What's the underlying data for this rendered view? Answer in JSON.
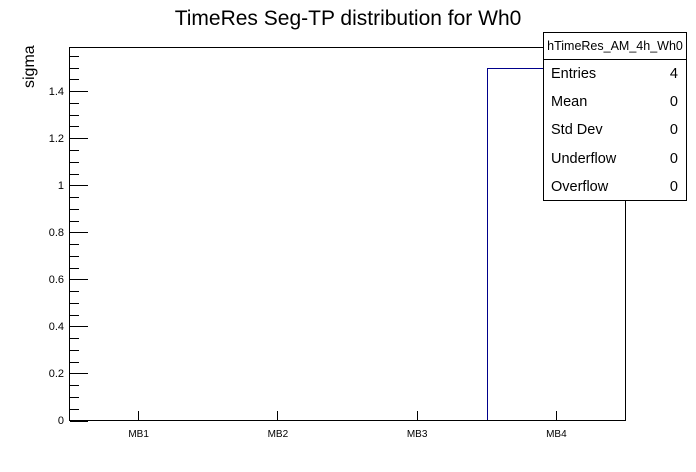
{
  "chart_data": {
    "type": "bar",
    "title": "TimeRes Seg-TP distribution for Wh0",
    "xlabel": "",
    "ylabel": "sigma",
    "categories": [
      "MB1",
      "MB2",
      "MB3",
      "MB4"
    ],
    "values": [
      0,
      0,
      0,
      1.5
    ],
    "ylim": [
      0,
      1.59
    ],
    "y_major_step": 0.2,
    "y_minor_step": 0.05,
    "y_tick_labels": [
      "0",
      "0.2",
      "0.4",
      "0.6",
      "0.8",
      "1",
      "1.2",
      "1.4"
    ],
    "grid": false,
    "legend": "none",
    "bar_line_color": "#00008B",
    "frame_color": "#000000",
    "background_color": "#ffffff"
  },
  "stats": {
    "name": "hTimeRes_AM_4h_Wh0",
    "rows": [
      {
        "label": "Entries",
        "value": "4"
      },
      {
        "label": "Mean",
        "value": "0"
      },
      {
        "label": "Std Dev",
        "value": "0"
      },
      {
        "label": "Underflow",
        "value": "0"
      },
      {
        "label": "Overflow",
        "value": "0"
      }
    ]
  }
}
